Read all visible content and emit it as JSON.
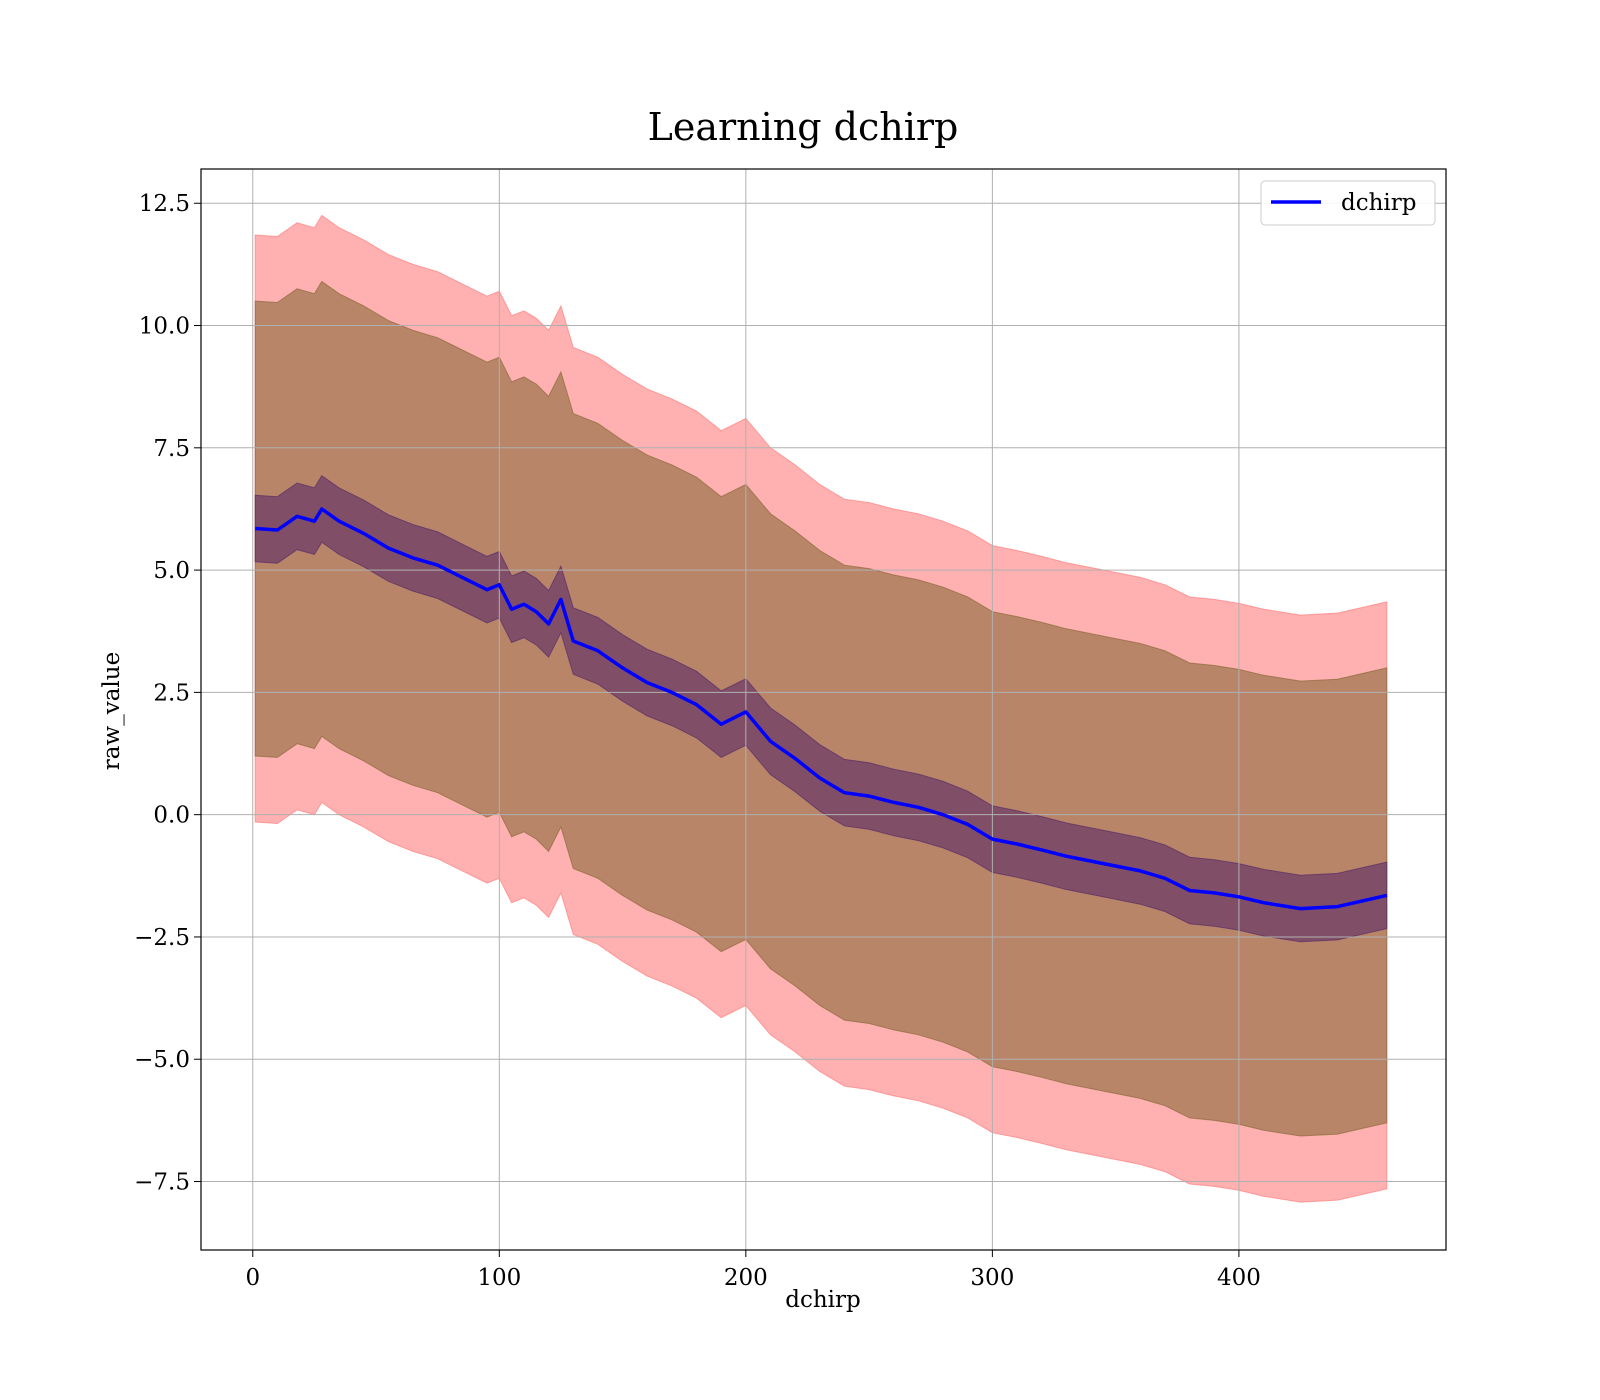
{
  "chart_data": {
    "type": "line",
    "title": "Learning dchirp",
    "xlabel": "dchirp",
    "ylabel": "raw_value",
    "xlim": [
      -21,
      484
    ],
    "ylim": [
      -8.9,
      13.2
    ],
    "xticks": [
      0,
      100,
      200,
      300,
      400
    ],
    "xtick_labels": [
      "0",
      "100",
      "200",
      "300",
      "400"
    ],
    "yticks": [
      -7.5,
      -5.0,
      -2.5,
      0.0,
      2.5,
      5.0,
      7.5,
      10.0,
      12.5
    ],
    "ytick_labels": [
      "−7.5",
      "−5.0",
      "−2.5",
      "0.0",
      "2.5",
      "5.0",
      "7.5",
      "10.0",
      "12.5"
    ],
    "grid": true,
    "legend_position": "top-right",
    "colors": {
      "line": "#0000ff",
      "outer_band": "#ff7f7f",
      "middle_band": "#8c6a3c",
      "inner_band": "#5a2b68",
      "grid": "#b0b0b0"
    },
    "series": [
      {
        "name": "dchirp",
        "x": [
          1,
          10,
          18,
          25,
          28,
          35,
          45,
          55,
          65,
          75,
          85,
          95,
          100,
          105,
          110,
          115,
          120,
          125,
          130,
          140,
          150,
          160,
          170,
          180,
          190,
          200,
          210,
          220,
          230,
          240,
          250,
          260,
          270,
          280,
          290,
          300,
          310,
          320,
          330,
          340,
          350,
          360,
          370,
          380,
          390,
          400,
          410,
          425,
          440,
          460
        ],
        "y": [
          5.85,
          5.82,
          6.1,
          6.0,
          6.25,
          6.0,
          5.75,
          5.45,
          5.25,
          5.1,
          4.85,
          4.6,
          4.7,
          4.2,
          4.3,
          4.15,
          3.9,
          4.4,
          3.55,
          3.35,
          3.0,
          2.7,
          2.5,
          2.25,
          1.85,
          2.1,
          1.5,
          1.15,
          0.75,
          0.45,
          0.38,
          0.25,
          0.15,
          0.0,
          -0.2,
          -0.5,
          -0.6,
          -0.72,
          -0.85,
          -0.95,
          -1.05,
          -1.15,
          -1.3,
          -1.55,
          -1.6,
          -1.68,
          -1.8,
          -1.92,
          -1.88,
          -1.65
        ]
      }
    ],
    "bands": [
      {
        "label": "outer",
        "offset": 6.0
      },
      {
        "label": "middle",
        "offset": 4.65
      },
      {
        "label": "inner",
        "offset": 0.68
      }
    ]
  }
}
